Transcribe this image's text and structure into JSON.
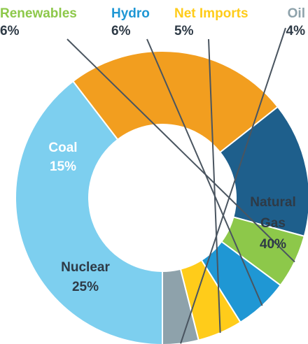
{
  "chart_data": {
    "type": "pie",
    "donut": true,
    "unit": "%",
    "slices": [
      {
        "label": "Natural Gas",
        "value": 40,
        "value_text": "40%",
        "color": "#7DCFEF",
        "label_color": "#2E3A46"
      },
      {
        "label": "Nuclear",
        "value": 25,
        "value_text": "25%",
        "color": "#F29E1F",
        "label_color": "#2E3A46"
      },
      {
        "label": "Coal",
        "value": 15,
        "value_text": "15%",
        "color": "#1E5F8C",
        "label_color": "#FFFFFF"
      },
      {
        "label": "Renewables",
        "value": 6,
        "value_text": "6%",
        "color": "#8DC84A",
        "label_color": "#8DC84A"
      },
      {
        "label": "Hydro",
        "value": 6,
        "value_text": "6%",
        "color": "#1F97D4",
        "label_color": "#1F97D4"
      },
      {
        "label": "Net Imports",
        "value": 5,
        "value_text": "5%",
        "color": "#FFCC1A",
        "label_color": "#FFCC1A"
      },
      {
        "label": "Oil",
        "value": 4,
        "value_text": "4%",
        "color": "#8EA2AB",
        "label_color": "#8EA2AB"
      }
    ],
    "outside_value_color": "#2E3A46",
    "leader_line_color": "#4A5560"
  }
}
